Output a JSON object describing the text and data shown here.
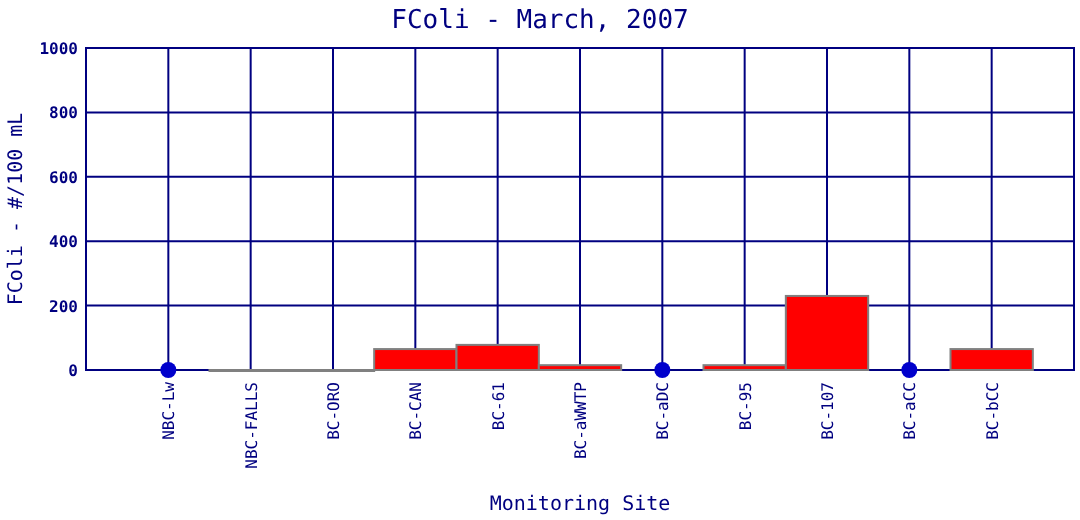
{
  "chart_data": {
    "type": "bar",
    "title": "FColi - March, 2007",
    "xlabel": "Monitoring Site",
    "ylabel": "FColi - #/100 mL",
    "categories": [
      "NBC-Lw",
      "NBC-FALLS",
      "BC-ORO",
      "BC-CAN",
      "BC-61",
      "BC-aWWTP",
      "BC-aDC",
      "BC-95",
      "BC-107",
      "BC-aCC",
      "BC-bCC"
    ],
    "series": [
      {
        "color": "#ff0000",
        "values": [
          null,
          0,
          0,
          65,
          78,
          15,
          null,
          15,
          230,
          null,
          65
        ]
      },
      {
        "type": "scatter",
        "color": "#0000cc",
        "x": [
          "NBC-Lw",
          "BC-aDC",
          "BC-aCC"
        ],
        "values": [
          0,
          0,
          0
        ],
        "marker": "circle"
      }
    ],
    "ylim": [
      0,
      1000
    ],
    "yticks": [
      0,
      200,
      400,
      600,
      800,
      1000
    ],
    "grid": true
  }
}
